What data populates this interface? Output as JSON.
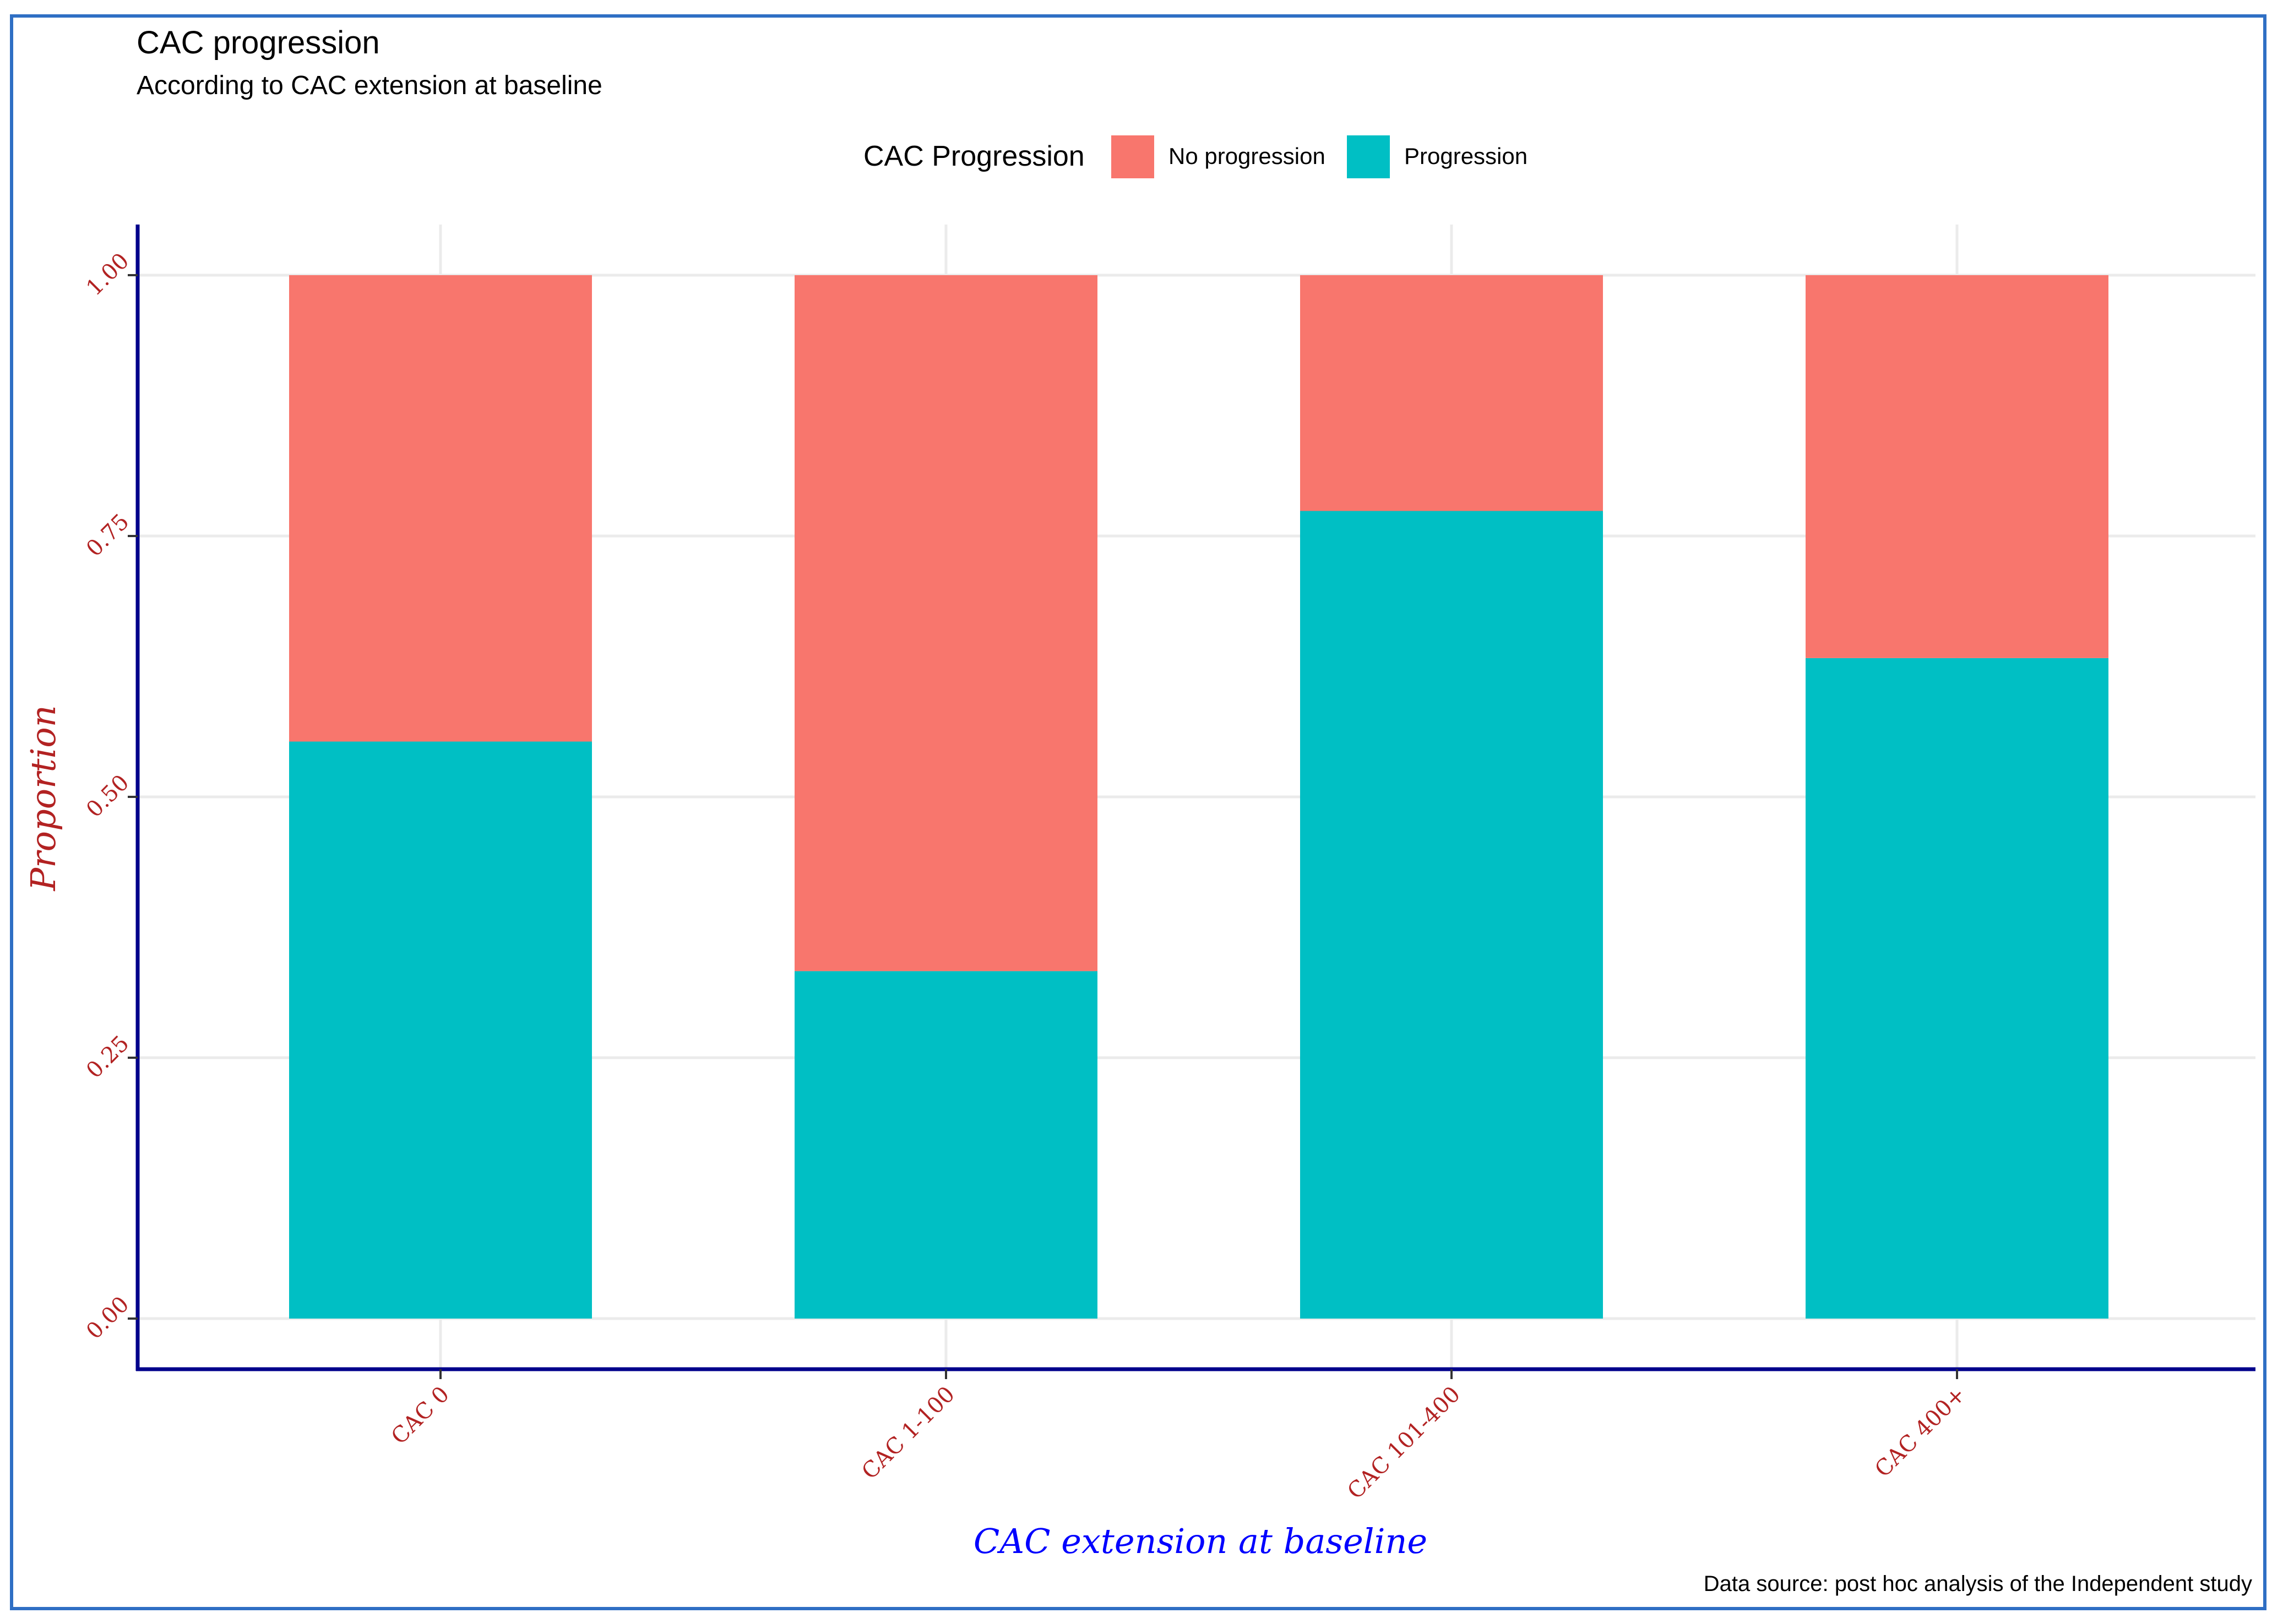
{
  "chart_data": {
    "type": "bar",
    "stacked": true,
    "title": "CAC progression",
    "subtitle": "According to CAC extension at baseline",
    "xlabel": "CAC extension at baseline",
    "ylabel": "Proportion",
    "caption": "Data source: post hoc analysis of the Independent study",
    "categories": [
      "CAC 0",
      "CAC 1-100",
      "CAC 101-400",
      "CAC 400+"
    ],
    "series": [
      {
        "name": "Progression",
        "color": "#00BFC4",
        "values": [
          0.553,
          0.333,
          0.774,
          0.633
        ]
      },
      {
        "name": "No progression",
        "color": "#F8766D",
        "values": [
          0.447,
          0.667,
          0.226,
          0.367
        ]
      }
    ],
    "ylim": [
      0,
      1.0
    ],
    "yticks": [
      "0.00",
      "0.25",
      "0.50",
      "0.75",
      "1.00"
    ],
    "ytick_values": [
      0,
      0.25,
      0.5,
      0.75,
      1.0
    ],
    "legend": {
      "title": "CAC Progression",
      "position": "top",
      "entries": [
        "No progression",
        "Progression"
      ]
    },
    "grid": true
  },
  "colors": {
    "no_progression": "#F8766D",
    "progression": "#00BFC4",
    "axis": "#00008B",
    "frame": "#2f6fc4"
  }
}
